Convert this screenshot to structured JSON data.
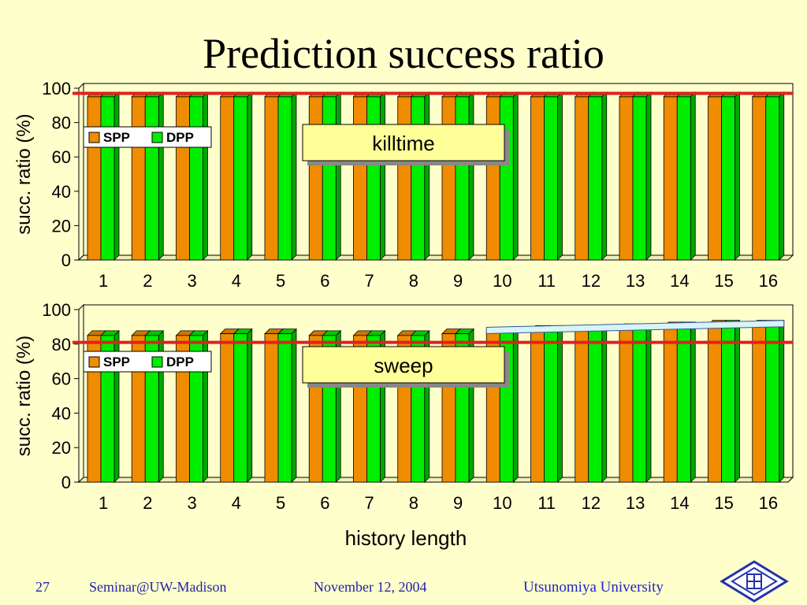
{
  "title": "Prediction success ratio",
  "footer": {
    "page": "27",
    "venue": "Seminar@UW-Madison",
    "date": "November 12, 2004",
    "org": "Utsunomiya University"
  },
  "colors": {
    "background": "#ffffcc",
    "spp": "#f08c00",
    "dpp": "#00ee00",
    "reference_line": "#e02020",
    "label_box": "#ffff99"
  },
  "chart_data": [
    {
      "type": "bar",
      "title": "killtime",
      "ylabel": "succ. ratio (%)",
      "xlabel": "",
      "ylim": [
        0,
        100
      ],
      "yticks": [
        0,
        20,
        40,
        60,
        80,
        100
      ],
      "categories": [
        "1",
        "2",
        "3",
        "4",
        "5",
        "6",
        "7",
        "8",
        "9",
        "10",
        "11",
        "12",
        "13",
        "14",
        "15",
        "16"
      ],
      "series": [
        {
          "name": "SPP",
          "values": [
            95,
            95,
            95,
            95,
            95,
            95,
            95,
            95,
            95,
            95,
            95,
            95,
            95,
            95,
            95,
            95
          ]
        },
        {
          "name": "DPP",
          "values": [
            95,
            95,
            95,
            95,
            95,
            95,
            95,
            95,
            95,
            95,
            95,
            95,
            95,
            95,
            95,
            95
          ]
        }
      ],
      "reference_line": 97,
      "grid": false,
      "legend": "top-left"
    },
    {
      "type": "bar",
      "title": "sweep",
      "ylabel": "succ. ratio (%)",
      "xlabel": "history length",
      "ylim": [
        0,
        100
      ],
      "yticks": [
        0,
        20,
        40,
        60,
        80,
        100
      ],
      "categories": [
        "1",
        "2",
        "3",
        "4",
        "5",
        "6",
        "7",
        "8",
        "9",
        "10",
        "11",
        "12",
        "13",
        "14",
        "15",
        "16"
      ],
      "series": [
        {
          "name": "SPP",
          "values": [
            85,
            85,
            85,
            86,
            86,
            85,
            85,
            85,
            86,
            87,
            88,
            88,
            89,
            90,
            91,
            91
          ]
        },
        {
          "name": "DPP",
          "values": [
            85,
            85,
            85,
            86,
            86,
            85,
            85,
            85,
            86,
            87,
            88,
            88,
            89,
            90,
            91,
            91
          ]
        }
      ],
      "reference_line": 81,
      "grid": false,
      "legend": "top-left"
    }
  ]
}
